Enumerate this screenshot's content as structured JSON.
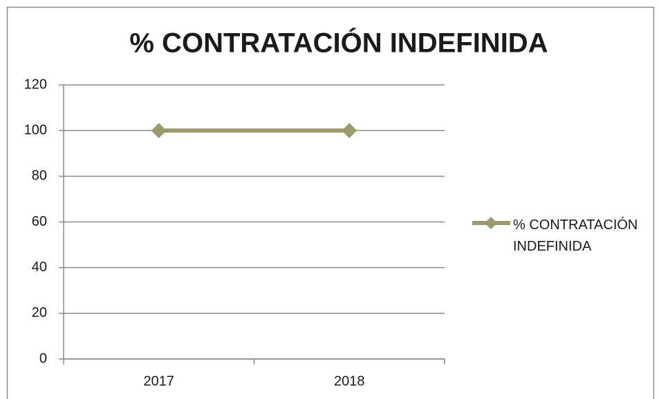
{
  "chart_data": {
    "type": "line",
    "title": "% CONTRATACIÓN INDEFINIDA",
    "categories": [
      "2017",
      "2018"
    ],
    "series": [
      {
        "name": "% CONTRATACIÓN INDEFINIDA",
        "color": "#9c9a6c",
        "values": [
          100,
          100
        ]
      }
    ],
    "ylim": [
      0,
      120
    ],
    "yticks": [
      0,
      20,
      40,
      60,
      80,
      100,
      120
    ],
    "grid": true,
    "legend": "right"
  }
}
